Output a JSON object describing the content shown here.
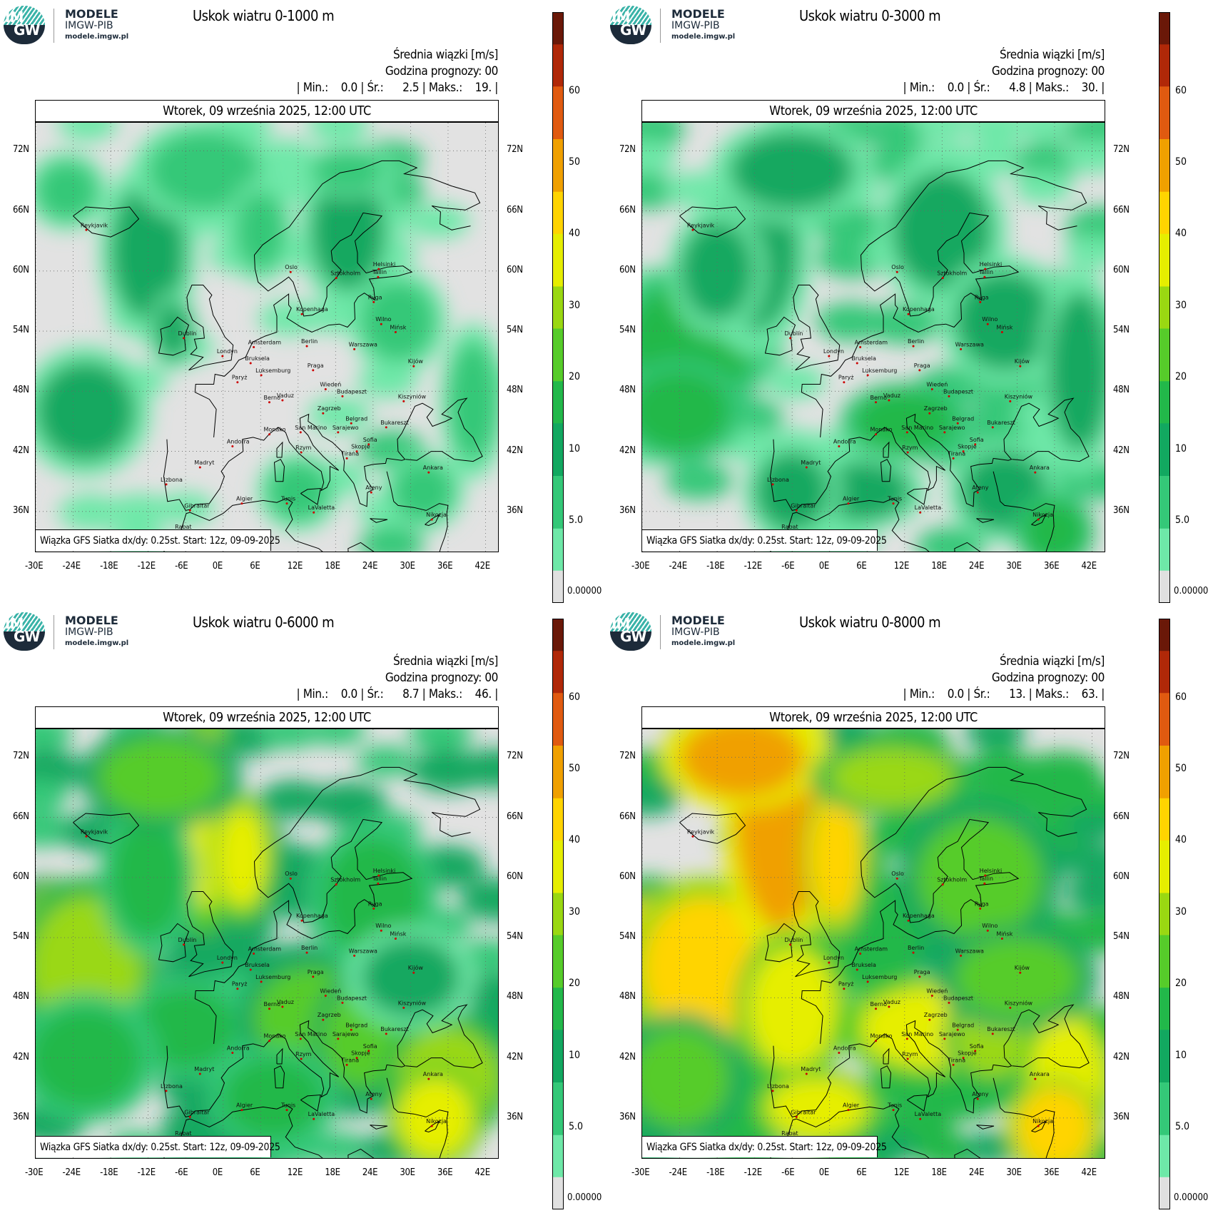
{
  "logo": {
    "mark_top": "IM",
    "mark_bottom": "GW",
    "line1": "MODELE",
    "line2": "IMGW-PIB",
    "line3": "modele.imgw.pl"
  },
  "common": {
    "variable": "Średnia wiązki [m/s]",
    "forecast_hour": "Godzina prognozy: 00",
    "date": "Wtorek, 09 września 2025, 12:00 UTC",
    "source_note": "Wiązka GFS Siatka dx/dy: 0.25st. Start: 12z, 09-09-2025",
    "lat_labels": [
      "72N",
      "66N",
      "60N",
      "54N",
      "48N",
      "42N",
      "36N"
    ],
    "lon_labels": [
      "-30E",
      "-24E",
      "-18E",
      "-12E",
      "-6E",
      "0E",
      "6E",
      "12E",
      "18E",
      "24E",
      "30E",
      "36E",
      "42E"
    ],
    "colorbar_ticks": [
      "60",
      "50",
      "40",
      "30",
      "20",
      "10",
      "5.0",
      "0.00000"
    ]
  },
  "cities": [
    "Reykjavik",
    "Dublin",
    "Londyn",
    "Amsterdam",
    "Bruksela",
    "Luksemburg",
    "Paryż",
    "Berno",
    "Vaduz",
    "Monako",
    "Andorra",
    "Madryt",
    "Lizbona",
    "Gibraltar",
    "Rabat",
    "Algier",
    "Tunis",
    "LaValetta",
    "Rzym",
    "San Marino",
    "Zagrzeb",
    "Sarajewo",
    "Belgrad",
    "Skopje",
    "Tirana",
    "Sofia",
    "Bukareszt",
    "Budapeszt",
    "Wiedeń",
    "Praga",
    "Berlin",
    "Kopenhaga",
    "Oslo",
    "Sztokholm",
    "Helsinki",
    "Tallin",
    "Ryga",
    "Wilno",
    "Mińsk",
    "Warszawa",
    "Kijów",
    "Kiszyniów",
    "Ankara",
    "Nikozja",
    "Ateny"
  ],
  "panels": [
    {
      "title": "Uskok wiatru 0-1000 m",
      "stats": "| Min.:    0.0 | Śr.:      2.5 | Maks.:    19. |",
      "min": 0.0,
      "mean": 2.5,
      "max": 19
    },
    {
      "title": "Uskok wiatru 0-3000 m",
      "stats": "| Min.:    0.0 | Śr.:      4.8 | Maks.:    30. |",
      "min": 0.0,
      "mean": 4.8,
      "max": 30
    },
    {
      "title": "Uskok wiatru 0-6000 m",
      "stats": "| Min.:    0.0 | Śr.:      8.7 | Maks.:    46. |",
      "min": 0.0,
      "mean": 8.7,
      "max": 46
    },
    {
      "title": "Uskok wiatru 0-8000 m",
      "stats": "| Min.:    0.0 | Śr.:      13. | Maks.:    63. |",
      "min": 0.0,
      "mean": 13,
      "max": 63
    }
  ],
  "colors": {
    "no_data": "#e2e2e2",
    "scale": [
      "#e0e0e0",
      "#6ee8a8",
      "#34c878",
      "#12a860",
      "#22b84a",
      "#56cc2a",
      "#9ad812",
      "#e6ee00",
      "#ffd400",
      "#f0a000",
      "#e05a10",
      "#b02808",
      "#6a1808"
    ],
    "coast": "#000000",
    "city": "#cc0000"
  }
}
